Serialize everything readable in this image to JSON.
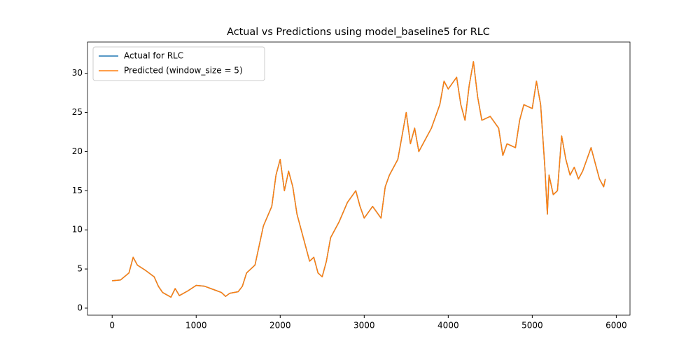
{
  "chart_data": {
    "type": "line",
    "title": "Actual vs Predictions using model_baseline5 for RLC",
    "x": [
      0,
      100,
      200,
      250,
      300,
      400,
      500,
      550,
      600,
      700,
      750,
      800,
      900,
      1000,
      1100,
      1200,
      1300,
      1350,
      1400,
      1500,
      1550,
      1600,
      1700,
      1800,
      1900,
      1950,
      2000,
      2050,
      2100,
      2150,
      2200,
      2250,
      2300,
      2350,
      2400,
      2450,
      2500,
      2550,
      2600,
      2700,
      2800,
      2900,
      2950,
      3000,
      3100,
      3200,
      3250,
      3300,
      3400,
      3450,
      3500,
      3550,
      3600,
      3650,
      3700,
      3800,
      3900,
      3950,
      4000,
      4100,
      4150,
      4200,
      4250,
      4300,
      4350,
      4400,
      4500,
      4600,
      4650,
      4700,
      4800,
      4850,
      4900,
      5000,
      5050,
      5100,
      5150,
      5180,
      5200,
      5250,
      5300,
      5350,
      5400,
      5450,
      5500,
      5550,
      5600,
      5700,
      5750,
      5800,
      5850,
      5870
    ],
    "series": [
      {
        "name": "Actual for RLC",
        "color": "#1f77b4",
        "values": [
          3.5,
          3.6,
          4.5,
          6.5,
          5.5,
          4.8,
          4.0,
          2.8,
          2.0,
          1.4,
          2.5,
          1.6,
          2.2,
          2.9,
          2.8,
          2.4,
          2.0,
          1.5,
          1.9,
          2.1,
          2.8,
          4.5,
          5.5,
          10.5,
          13,
          17,
          19,
          15,
          17.5,
          15.5,
          12,
          10,
          8,
          6,
          6.5,
          4.5,
          4,
          6,
          9,
          11,
          13.5,
          15,
          13,
          11.5,
          13,
          11.5,
          15.5,
          17,
          19,
          22,
          25,
          21,
          23,
          20,
          21,
          23,
          26,
          29,
          28,
          29.5,
          26,
          24,
          28.5,
          31.5,
          27,
          24,
          24.5,
          23,
          19.5,
          21,
          20.5,
          24,
          26,
          25.5,
          29,
          26,
          18,
          12,
          17,
          14.5,
          15,
          22,
          19,
          17,
          18,
          16.5,
          17.5,
          20.5,
          18.5,
          16.5,
          15.5,
          16.5
        ]
      },
      {
        "name": "Predicted (window_size = 5)",
        "color": "#ff7f0e",
        "values": [
          3.5,
          3.6,
          4.5,
          6.5,
          5.5,
          4.8,
          4.0,
          2.8,
          2.0,
          1.4,
          2.5,
          1.6,
          2.2,
          2.9,
          2.8,
          2.4,
          2.0,
          1.5,
          1.9,
          2.1,
          2.8,
          4.5,
          5.5,
          10.5,
          13,
          17,
          19,
          15,
          17.5,
          15.5,
          12,
          10,
          8,
          6,
          6.5,
          4.5,
          4,
          6,
          9,
          11,
          13.5,
          15,
          13,
          11.5,
          13,
          11.5,
          15.5,
          17,
          19,
          22,
          25,
          21,
          23,
          20,
          21,
          23,
          26,
          29,
          28,
          29.5,
          26,
          24,
          28.5,
          31.5,
          27,
          24,
          24.5,
          23,
          19.5,
          21,
          20.5,
          24,
          26,
          25.5,
          29,
          26,
          18,
          12,
          17,
          14.5,
          15,
          22,
          19,
          17,
          18,
          16.5,
          17.5,
          20.5,
          18.5,
          16.5,
          15.5,
          16.5
        ]
      }
    ],
    "xlim": [
      -293.5,
      6163.5
    ],
    "xticks": [
      0,
      1000,
      2000,
      3000,
      4000,
      5000,
      6000
    ],
    "ylim": [
      -0.9,
      34.0
    ],
    "yticks": [
      0,
      5,
      10,
      15,
      20,
      25,
      30
    ],
    "legend": "upper left"
  }
}
